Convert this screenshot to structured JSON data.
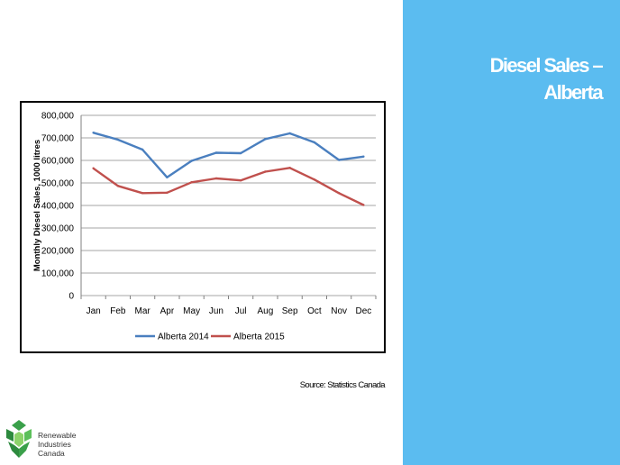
{
  "slide": {
    "title_line1": "Diesel Sales –",
    "title_line2": "Alberta",
    "source": "Source: Statistics Canada"
  },
  "logo": {
    "line1": "Renewable",
    "line2": "Industries",
    "line3": "Canada"
  },
  "colors": {
    "panel": "#5bbcf0",
    "series_2014": "#4a7fbf",
    "series_2015": "#c0504d"
  },
  "chart_data": {
    "type": "line",
    "title": "",
    "xlabel": "",
    "ylabel": "Monthly Diesel Sales, 1000 litres",
    "ylim": [
      0,
      800000
    ],
    "y_ticks": [
      0,
      100000,
      200000,
      300000,
      400000,
      500000,
      600000,
      700000,
      800000
    ],
    "y_tick_labels": [
      "0",
      "100,000",
      "200,000",
      "300,000",
      "400,000",
      "500,000",
      "600,000",
      "700,000",
      "800,000"
    ],
    "grid": true,
    "legend": "bottom",
    "categories": [
      "Jan",
      "Feb",
      "Mar",
      "Apr",
      "May",
      "Jun",
      "Jul",
      "Aug",
      "Sep",
      "Oct",
      "Nov",
      "Dec"
    ],
    "series": [
      {
        "name": "Alberta 2014",
        "color": "#4a7fbf",
        "values": [
          723000,
          692000,
          648000,
          525000,
          598000,
          634000,
          632000,
          695000,
          720000,
          680000,
          602000,
          617000
        ]
      },
      {
        "name": "Alberta 2015",
        "color": "#c0504d",
        "values": [
          565000,
          487000,
          455000,
          457000,
          503000,
          520000,
          511000,
          550000,
          567000,
          515000,
          455000,
          402000
        ]
      }
    ]
  }
}
